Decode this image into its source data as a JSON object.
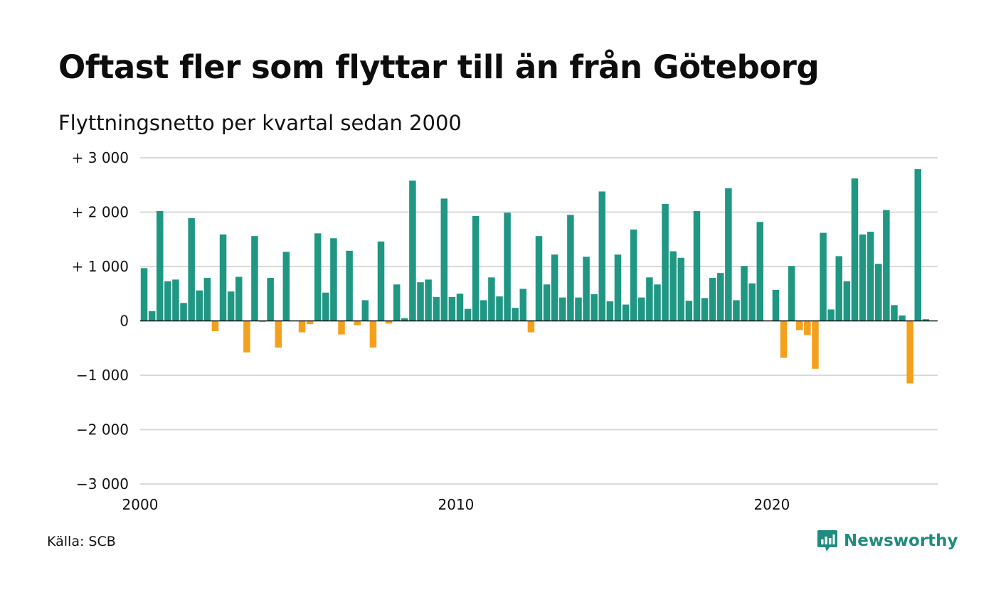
{
  "title": "Oftast fler som flyttar till än från Göteborg",
  "subtitle": "Flyttningsnetto per kvartal sedan 2000",
  "source": "Källa: SCB",
  "brand": "Newsworthy",
  "colors": {
    "positive": "#1f9783",
    "negative": "#f5a01c",
    "grid": "#d9d9d9",
    "zero_line": "#111111",
    "brand": "#1f8c7d"
  },
  "chart_data": {
    "type": "bar",
    "title": "Oftast fler som flyttar till än från Göteborg",
    "subtitle": "Flyttningsnetto per kvartal sedan 2000",
    "x_start": 2000,
    "x_step": 0.25,
    "xlim": [
      2000,
      2025.25
    ],
    "ylim": [
      -3000,
      3000
    ],
    "x_ticks": [
      {
        "value": 2000,
        "label": "2000"
      },
      {
        "value": 2010,
        "label": "2010"
      },
      {
        "value": 2020,
        "label": "2020"
      }
    ],
    "y_ticks": [
      {
        "value": 3000,
        "label": "+ 3 000"
      },
      {
        "value": 2000,
        "label": "+ 2 000"
      },
      {
        "value": 1000,
        "label": "+ 1 000"
      },
      {
        "value": 0,
        "label": "0"
      },
      {
        "value": -1000,
        "label": "−1 000"
      },
      {
        "value": -2000,
        "label": "−2 000"
      },
      {
        "value": -3000,
        "label": "−3 000"
      }
    ],
    "grid": true,
    "values": [
      970,
      180,
      2020,
      730,
      760,
      330,
      1890,
      560,
      790,
      -190,
      1590,
      540,
      810,
      -580,
      1560,
      -20,
      790,
      -490,
      1270,
      0,
      -210,
      -60,
      1610,
      520,
      1520,
      -250,
      1290,
      -80,
      380,
      -490,
      1460,
      -50,
      670,
      50,
      2580,
      710,
      760,
      440,
      2250,
      440,
      500,
      220,
      1930,
      380,
      800,
      450,
      1990,
      240,
      590,
      -210,
      1560,
      670,
      1220,
      430,
      1950,
      430,
      1180,
      490,
      2380,
      360,
      1220,
      300,
      1680,
      430,
      800,
      670,
      2150,
      1280,
      1160,
      370,
      2020,
      420,
      790,
      880,
      2440,
      380,
      1010,
      690,
      1820,
      0,
      570,
      -680,
      1010,
      -170,
      -260,
      -880,
      1620,
      210,
      1190,
      730,
      2620,
      1590,
      1640,
      1050,
      2040,
      290,
      100,
      -1150,
      2790,
      30
    ]
  }
}
